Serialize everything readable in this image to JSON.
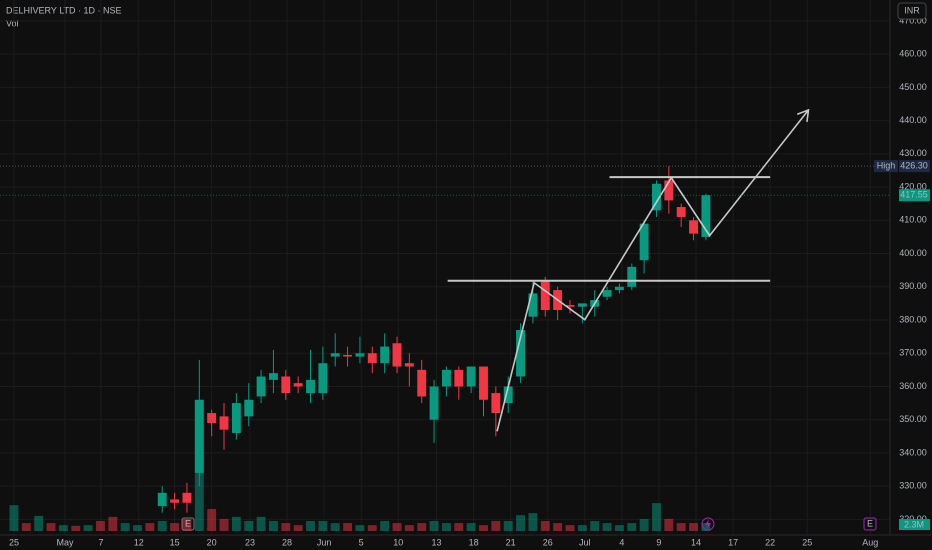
{
  "chart_data": {
    "type": "candlestick",
    "title": "DELHIVERY LTD · 1D · NSE",
    "volume_title": "Vol",
    "currency": "INR",
    "up_color": "#089981",
    "down_color": "#f23645",
    "x": [
      0,
      1,
      2,
      3,
      4,
      5,
      6,
      7,
      8,
      9,
      10,
      11,
      12,
      13,
      14,
      15,
      16,
      17,
      18,
      19,
      20,
      21,
      22,
      23,
      24,
      25,
      26,
      27,
      28,
      29,
      30,
      31,
      32,
      33,
      34,
      35,
      36,
      37,
      38,
      39,
      40,
      41,
      42,
      43,
      44,
      45,
      46,
      47,
      48,
      49,
      50,
      51,
      52,
      53,
      54,
      55,
      56
    ],
    "open": [
      null,
      null,
      null,
      null,
      null,
      null,
      null,
      null,
      null,
      null,
      null,
      null,
      324,
      326,
      328,
      334,
      352,
      351,
      346,
      351,
      357,
      362,
      363,
      361,
      358,
      358,
      369,
      369.5,
      369,
      370,
      367,
      373,
      367,
      365,
      350,
      360,
      365,
      360,
      366,
      358,
      355,
      363,
      381,
      392,
      389,
      384.5,
      384,
      384,
      387,
      389,
      390,
      398,
      413,
      422,
      414,
      410,
      405
    ],
    "high": [
      null,
      null,
      null,
      null,
      null,
      null,
      null,
      null,
      null,
      null,
      null,
      null,
      330,
      328,
      331,
      368,
      353,
      355,
      358,
      361,
      365,
      371,
      365,
      363,
      371,
      372,
      376,
      372,
      375,
      372,
      376,
      375,
      370,
      368,
      362,
      366,
      366,
      366,
      366,
      360,
      363,
      379,
      392,
      393,
      390,
      386,
      385,
      389,
      390,
      391,
      397,
      410,
      422,
      426.3,
      415,
      411,
      418
    ],
    "low": [
      null,
      null,
      null,
      null,
      null,
      null,
      null,
      null,
      null,
      null,
      null,
      null,
      322,
      323,
      322,
      330,
      345,
      341,
      344,
      348,
      355,
      358,
      356,
      358,
      355,
      356,
      366,
      366,
      367,
      364,
      364,
      364,
      360,
      355,
      343,
      357,
      356,
      358,
      351,
      345,
      352,
      361,
      379,
      381,
      380,
      382,
      379,
      381,
      386,
      388,
      389,
      394,
      411,
      412,
      408,
      404,
      404
    ],
    "close": [
      null,
      null,
      null,
      null,
      null,
      null,
      null,
      null,
      null,
      null,
      null,
      null,
      328,
      325,
      325,
      356,
      349,
      347,
      355,
      356,
      363,
      364,
      358,
      360,
      362,
      367,
      370,
      369,
      370,
      367,
      372,
      366,
      366,
      357,
      360,
      365,
      360,
      366,
      356,
      352,
      360,
      377,
      388,
      383,
      383,
      384,
      385,
      386,
      389,
      390,
      396,
      409,
      421,
      416,
      411,
      406,
      417.55
    ],
    "volume": [
      7.5,
      2.3,
      4.4,
      2.3,
      1.7,
      1.5,
      1.7,
      2.9,
      4.1,
      2.3,
      1.7,
      2.3,
      2.9,
      2.3,
      3.5,
      37.7,
      6.4,
      3.5,
      4.1,
      2.9,
      4.1,
      2.9,
      2.3,
      1.7,
      2.9,
      2.9,
      2.3,
      2.3,
      1.7,
      1.7,
      2.9,
      2.3,
      1.7,
      2.3,
      2.9,
      2.3,
      2.3,
      2.3,
      1.7,
      2.9,
      2.9,
      4.6,
      5.2,
      2.9,
      2.3,
      1.7,
      1.7,
      2.9,
      2.3,
      1.7,
      2.3,
      3.5,
      8.1,
      3.5,
      2.3,
      2.3,
      2.3
    ],
    "volume_direction": [
      "up",
      "down",
      "up",
      "down",
      "up",
      "down",
      "up",
      "down",
      "down",
      "up",
      "up",
      "down",
      "up",
      "down",
      "down",
      "up",
      "down",
      "down",
      "up",
      "up",
      "up",
      "up",
      "down",
      "down",
      "up",
      "up",
      "up",
      "down",
      "up",
      "down",
      "up",
      "down",
      "down",
      "down",
      "up",
      "up",
      "down",
      "up",
      "down",
      "down",
      "up",
      "up",
      "up",
      "down",
      "down",
      "down",
      "up",
      "up",
      "up",
      "up",
      "up",
      "up",
      "up",
      "down",
      "down",
      "down",
      "up"
    ],
    "vlim": [
      0,
      45
    ],
    "xlim": [
      -1.13,
      70.9
    ],
    "xticks": [
      {
        "value": 0,
        "label": "25"
      },
      {
        "value": 4.13,
        "label": "May"
      },
      {
        "value": 7.04,
        "label": "7"
      },
      {
        "value": 10.1,
        "label": "12"
      },
      {
        "value": 13,
        "label": "15"
      },
      {
        "value": 16,
        "label": "20"
      },
      {
        "value": 19.1,
        "label": "23"
      },
      {
        "value": 22.1,
        "label": "28"
      },
      {
        "value": 25.1,
        "label": "Jun"
      },
      {
        "value": 28.1,
        "label": "5"
      },
      {
        "value": 31.1,
        "label": "10"
      },
      {
        "value": 34.2,
        "label": "13"
      },
      {
        "value": 37.2,
        "label": "18"
      },
      {
        "value": 40.2,
        "label": "21"
      },
      {
        "value": 43.2,
        "label": "26"
      },
      {
        "value": 46.2,
        "label": "Jul"
      },
      {
        "value": 49.2,
        "label": "4"
      },
      {
        "value": 52.2,
        "label": "9"
      },
      {
        "value": 55.2,
        "label": "14"
      },
      {
        "value": 58.2,
        "label": "17"
      },
      {
        "value": 61.2,
        "label": "22"
      },
      {
        "value": 64.2,
        "label": "25"
      },
      {
        "value": 69.3,
        "label": "Aug"
      }
    ],
    "ylim": [
      315.3,
      476.3
    ],
    "yticks": [
      {
        "value": 320,
        "label": "320.00"
      },
      {
        "value": 330,
        "label": "330.00"
      },
      {
        "value": 340,
        "label": "340.00"
      },
      {
        "value": 350,
        "label": "350.00"
      },
      {
        "value": 360,
        "label": "360.00"
      },
      {
        "value": 370,
        "label": "370.00"
      },
      {
        "value": 380,
        "label": "380.00"
      },
      {
        "value": 390,
        "label": "390.00"
      },
      {
        "value": 400,
        "label": "400.00"
      },
      {
        "value": 410,
        "label": "410.00"
      },
      {
        "value": 420,
        "label": "420.00"
      },
      {
        "value": 430,
        "label": "430.00"
      },
      {
        "value": 440,
        "label": "440.00"
      },
      {
        "value": 450,
        "label": "450.00"
      },
      {
        "value": 460,
        "label": "460.00"
      },
      {
        "value": 470,
        "label": "470.00"
      }
    ],
    "grid": true,
    "high_tag": {
      "name": "High",
      "price": {
        "value": 426.3,
        "label": "426.30"
      }
    },
    "last_price_tag": {
      "value": 417.55,
      "label": "417.55"
    },
    "volume_tag": {
      "value": 2.3,
      "label": "2.3M"
    },
    "earnings_marker": "E",
    "drawings": {
      "levels": [
        {
          "price": 391.8,
          "from": 35.1,
          "to": 61.2
        },
        {
          "price": 423,
          "from": 48.2,
          "to": 61.2
        }
      ],
      "path": {
        "x": [
          39.1,
          42.1,
          46.2,
          53.2,
          56.3,
          64.3
        ],
        "y": [
          346.5,
          391.2,
          380.1,
          422.8,
          405.4,
          443.2
        ]
      },
      "color": "#c8c8c8"
    }
  }
}
